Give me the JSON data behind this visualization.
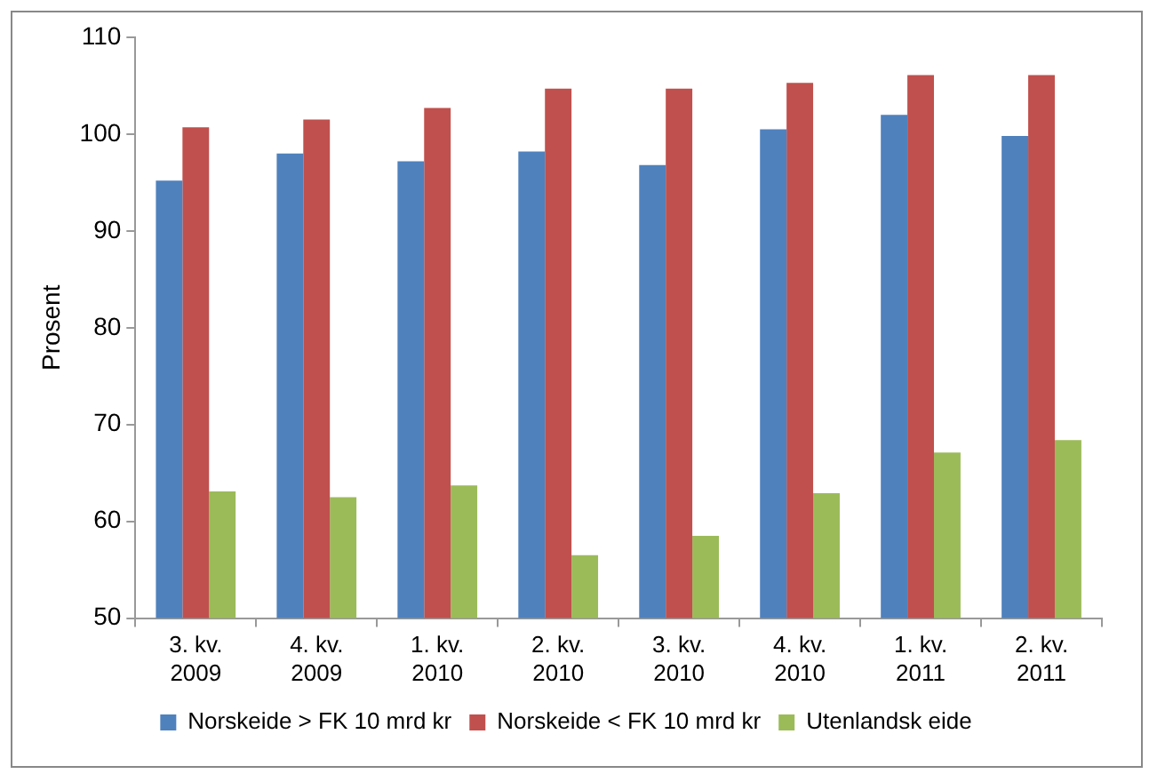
{
  "chart_data": {
    "type": "bar",
    "ylabel": "Prosent",
    "categories": [
      "3. kv. 2009",
      "4. kv. 2009",
      "1. kv. 2010",
      "2. kv. 2010",
      "3. kv. 2010",
      "4. kv. 2010",
      "1. kv. 2011",
      "2. kv. 2011"
    ],
    "series": [
      {
        "name": "Norskeide > FK 10 mrd kr",
        "color": "#4f81bd",
        "values": [
          95.2,
          98,
          97.2,
          98.2,
          96.8,
          100.5,
          102,
          99.8
        ]
      },
      {
        "name": "Norskeide < FK 10 mrd kr",
        "color": "#c0504d",
        "values": [
          100.7,
          101.5,
          102.7,
          104.7,
          104.7,
          105.3,
          106.1,
          106.1
        ]
      },
      {
        "name": "Utenlandsk eide",
        "color": "#9bbb59",
        "values": [
          63.1,
          62.5,
          63.7,
          56.5,
          58.5,
          62.9,
          67.1,
          68.4
        ]
      }
    ],
    "ylim": [
      50,
      110
    ],
    "yticks": [
      50,
      60,
      70,
      80,
      90,
      100,
      110
    ],
    "grid": false,
    "legend": "bottom"
  }
}
